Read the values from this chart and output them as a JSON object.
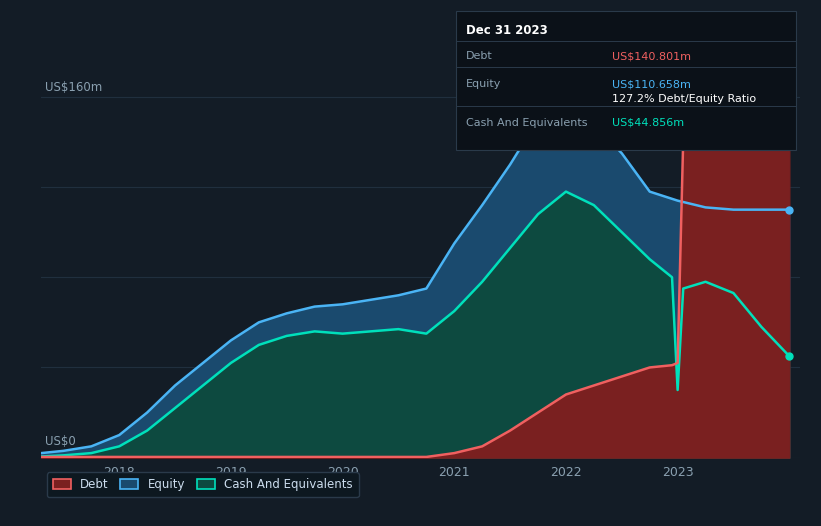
{
  "background_color": "#131c26",
  "plot_bg_color": "#131c26",
  "ylabel": "US$160m",
  "y0label": "US$0",
  "ylim": [
    0,
    175
  ],
  "xlim": [
    2017.3,
    2024.1
  ],
  "xticks": [
    2018,
    2019,
    2020,
    2021,
    2022,
    2023
  ],
  "grid_color": "#1e3040",
  "equity_color": "#4ab4f5",
  "equity_fill": "#1a4a6e",
  "debt_color": "#f06060",
  "debt_fill": "#7a2020",
  "cash_color": "#00e0bb",
  "cash_fill": "#0d4a40",
  "infobox_bg": "#0b1118",
  "infobox_border": "#2a3a4a",
  "info_date": "Dec 31 2023",
  "info_debt_label": "Debt",
  "info_debt_value": "US$140.801m",
  "info_equity_label": "Equity",
  "info_equity_value": "US$110.658m",
  "info_ratio": "127.2% Debt/Equity Ratio",
  "info_cash_label": "Cash And Equivalents",
  "info_cash_value": "US$44.856m",
  "legend_items": [
    "Debt",
    "Equity",
    "Cash And Equivalents"
  ],
  "years_equity": [
    2017.3,
    2017.5,
    2017.75,
    2018.0,
    2018.25,
    2018.5,
    2018.75,
    2019.0,
    2019.25,
    2019.5,
    2019.75,
    2020.0,
    2020.25,
    2020.5,
    2020.75,
    2021.0,
    2021.25,
    2021.5,
    2021.75,
    2022.0,
    2022.25,
    2022.5,
    2022.75,
    2023.0,
    2023.25,
    2023.5,
    2023.75,
    2024.0
  ],
  "equity_values": [
    2,
    3,
    5,
    10,
    20,
    32,
    42,
    52,
    60,
    64,
    67,
    68,
    70,
    72,
    75,
    95,
    112,
    130,
    150,
    156,
    148,
    135,
    118,
    114,
    111,
    110,
    110,
    110
  ],
  "years_debt": [
    2017.3,
    2017.5,
    2017.75,
    2018.0,
    2018.25,
    2018.5,
    2018.75,
    2019.0,
    2019.25,
    2019.5,
    2019.75,
    2020.0,
    2020.25,
    2020.5,
    2020.75,
    2021.0,
    2021.25,
    2021.5,
    2021.75,
    2022.0,
    2022.25,
    2022.5,
    2022.75,
    2022.95,
    2023.0,
    2023.05,
    2023.25,
    2023.5,
    2023.75,
    2024.0
  ],
  "debt_values": [
    0.3,
    0.3,
    0.3,
    0.3,
    0.3,
    0.3,
    0.3,
    0.3,
    0.3,
    0.3,
    0.3,
    0.3,
    0.3,
    0.3,
    0.3,
    2,
    5,
    12,
    20,
    28,
    32,
    36,
    40,
    41,
    42,
    141,
    141,
    141,
    141,
    141
  ],
  "years_cash": [
    2017.3,
    2017.5,
    2017.75,
    2018.0,
    2018.25,
    2018.5,
    2018.75,
    2019.0,
    2019.25,
    2019.5,
    2019.75,
    2020.0,
    2020.25,
    2020.5,
    2020.75,
    2021.0,
    2021.25,
    2021.5,
    2021.75,
    2022.0,
    2022.25,
    2022.5,
    2022.75,
    2022.95,
    2023.0,
    2023.05,
    2023.25,
    2023.5,
    2023.75,
    2024.0
  ],
  "cash_values": [
    0.5,
    1,
    2,
    5,
    12,
    22,
    32,
    42,
    50,
    54,
    56,
    55,
    56,
    57,
    55,
    65,
    78,
    93,
    108,
    118,
    112,
    100,
    88,
    80,
    30,
    75,
    78,
    73,
    58,
    45
  ]
}
